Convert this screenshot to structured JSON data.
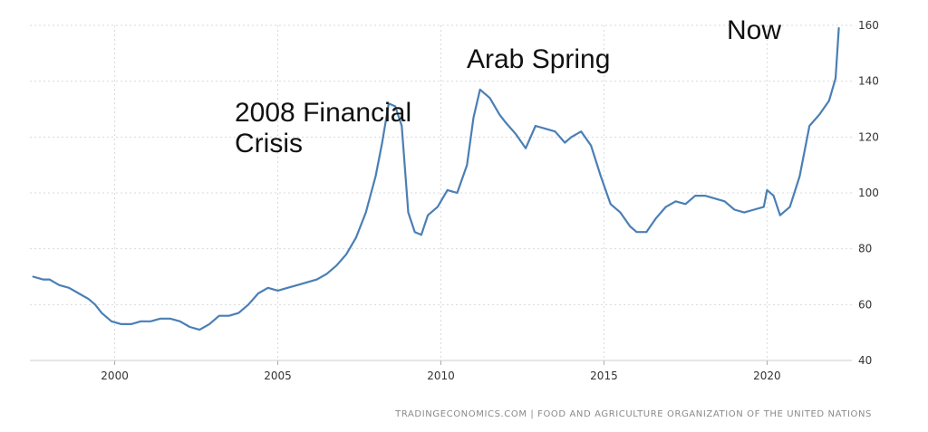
{
  "chart_data": {
    "type": "line",
    "title": "",
    "xlabel": "",
    "ylabel": "",
    "xlim": [
      1997.4,
      2022.6
    ],
    "ylim": [
      40,
      160
    ],
    "x_ticks": [
      2000,
      2005,
      2010,
      2015,
      2020
    ],
    "y_ticks": [
      40,
      60,
      80,
      100,
      120,
      140,
      160
    ],
    "grid": true,
    "legend": "none",
    "line_color": "#4a7fb5",
    "series": [
      {
        "x": [
          1997.5,
          1997.8,
          1998.0,
          1998.3,
          1998.6,
          1998.9,
          1999.2,
          1999.4,
          1999.6,
          1999.9,
          2000.2,
          2000.5,
          2000.8,
          2001.1,
          2001.4,
          2001.7,
          2002.0,
          2002.3,
          2002.6,
          2002.9,
          2003.2,
          2003.5,
          2003.8,
          2004.1,
          2004.4,
          2004.7,
          2005.0,
          2005.3,
          2005.6,
          2005.9,
          2006.2,
          2006.5,
          2006.8,
          2007.1,
          2007.4,
          2007.7,
          2008.0,
          2008.2,
          2008.4,
          2008.6,
          2008.8,
          2009.0,
          2009.2,
          2009.4,
          2009.6,
          2009.9,
          2010.2,
          2010.5,
          2010.8,
          2011.0,
          2011.2,
          2011.5,
          2011.8,
          2012.0,
          2012.3,
          2012.6,
          2012.9,
          2013.2,
          2013.5,
          2013.8,
          2014.0,
          2014.3,
          2014.6,
          2014.9,
          2015.2,
          2015.5,
          2015.8,
          2016.0,
          2016.3,
          2016.6,
          2016.9,
          2017.2,
          2017.5,
          2017.8,
          2018.1,
          2018.4,
          2018.7,
          2019.0,
          2019.3,
          2019.6,
          2019.9,
          2020.0,
          2020.2,
          2020.4,
          2020.7,
          2021.0,
          2021.3,
          2021.6,
          2021.9,
          2022.0,
          2022.1,
          2022.2
        ],
        "y": [
          70,
          69,
          69,
          67,
          66,
          64,
          62,
          60,
          57,
          54,
          53,
          53,
          54,
          54,
          55,
          55,
          54,
          52,
          51,
          53,
          56,
          56,
          57,
          60,
          64,
          66,
          65,
          66,
          67,
          68,
          69,
          71,
          74,
          78,
          84,
          93,
          106,
          118,
          132,
          131,
          124,
          93,
          86,
          85,
          92,
          95,
          101,
          100,
          110,
          127,
          137,
          134,
          128,
          125,
          121,
          116,
          124,
          123,
          122,
          118,
          120,
          122,
          117,
          106,
          96,
          93,
          88,
          86,
          86,
          91,
          95,
          97,
          96,
          99,
          99,
          98,
          97,
          94,
          93,
          94,
          95,
          101,
          99,
          92,
          95,
          106,
          124,
          128,
          133,
          137,
          141,
          159
        ]
      }
    ],
    "annotations": {
      "financial_crisis_line1": "2008 Financial",
      "financial_crisis_line2": "Crisis",
      "arab_spring": "Arab Spring",
      "now": "Now"
    },
    "source": "TRADINGECONOMICS.COM | FOOD AND AGRICULTURE ORGANIZATION OF THE UNITED NATIONS"
  }
}
